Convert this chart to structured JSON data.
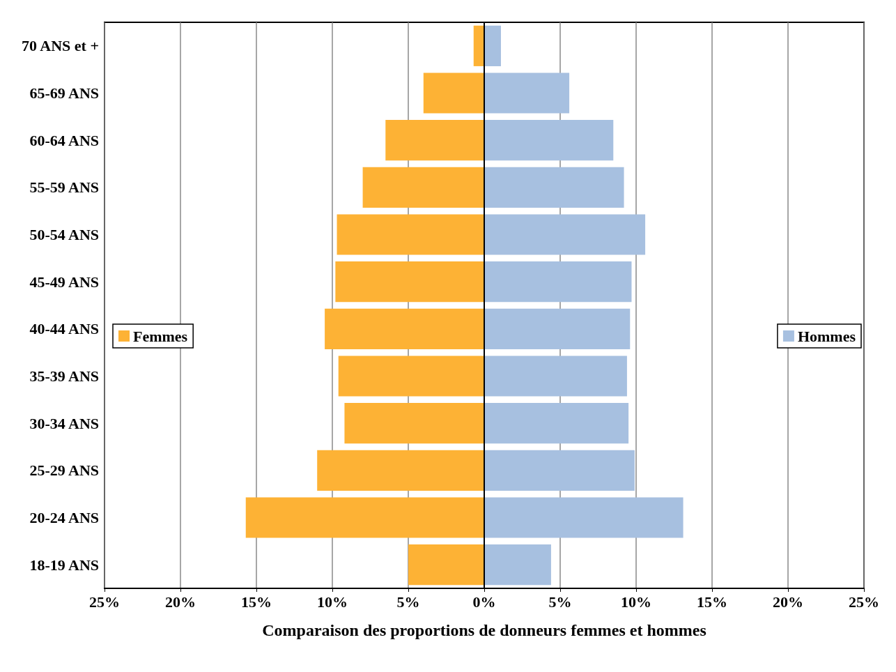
{
  "chart_data": {
    "type": "bar",
    "orientation": "horizontal",
    "xlabel": "Comparaison des proportions de donneurs femmes et hommes",
    "categories": [
      "70 ANS et +",
      "65-69 ANS",
      "60-64 ANS",
      "55-59 ANS",
      "50-54 ANS",
      "45-49 ANS",
      "40-44 ANS",
      "35-39 ANS",
      "30-34 ANS",
      "25-29 ANS",
      "20-24 ANS",
      "18-19 ANS"
    ],
    "series": [
      {
        "name": "Femmes",
        "color": "#fdb235",
        "values": [
          -0.7,
          -4.0,
          -6.5,
          -8.0,
          -9.7,
          -9.8,
          -10.5,
          -9.6,
          -9.2,
          -11.0,
          -15.7,
          -5.0
        ]
      },
      {
        "name": "Hommes",
        "color": "#a7c0e0",
        "values": [
          1.1,
          5.6,
          8.5,
          9.2,
          10.6,
          9.7,
          9.6,
          9.4,
          9.5,
          9.9,
          13.1,
          4.4
        ]
      }
    ],
    "xlim": [
      -25,
      25
    ],
    "xticks": [
      {
        "value": -25,
        "label": "25%"
      },
      {
        "value": -20,
        "label": "20%"
      },
      {
        "value": -15,
        "label": "15%"
      },
      {
        "value": -10,
        "label": "10%"
      },
      {
        "value": -5,
        "label": "5%"
      },
      {
        "value": 0,
        "label": "0%"
      },
      {
        "value": 5,
        "label": "5%"
      },
      {
        "value": 10,
        "label": "10%"
      },
      {
        "value": 15,
        "label": "15%"
      },
      {
        "value": 20,
        "label": "20%"
      },
      {
        "value": 25,
        "label": "25%"
      }
    ],
    "grid": "x",
    "legend": "left, right",
    "stacked": true
  }
}
